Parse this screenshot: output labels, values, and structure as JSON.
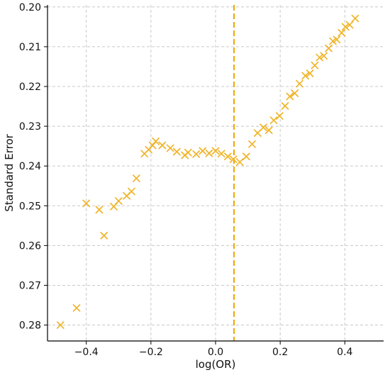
{
  "chart_data": {
    "type": "scatter",
    "xlabel": "log(OR)",
    "ylabel": "Standard Error",
    "xlim": [
      -0.52,
      0.52
    ],
    "ylim": [
      0.284,
      0.1995
    ],
    "y_inverted": true,
    "xticks": [
      -0.4,
      -0.2,
      0.0,
      0.2,
      0.4
    ],
    "xtick_labels": [
      "−0.4",
      "−0.2",
      "0.0",
      "0.2",
      "0.4"
    ],
    "yticks": [
      0.2,
      0.21,
      0.22,
      0.23,
      0.24,
      0.25,
      0.26,
      0.27,
      0.28
    ],
    "ytick_labels": [
      "0.20",
      "0.21",
      "0.22",
      "0.23",
      "0.24",
      "0.25",
      "0.26",
      "0.27",
      "0.28"
    ],
    "grid": true,
    "marker": "x",
    "color": "#f0b429",
    "reference_line": {
      "orientation": "vertical",
      "x": 0.057,
      "style": "dashed",
      "color": "#f0a500"
    },
    "points": [
      {
        "x": -0.48,
        "y": 0.28
      },
      {
        "x": -0.43,
        "y": 0.2757
      },
      {
        "x": -0.4,
        "y": 0.2494
      },
      {
        "x": -0.36,
        "y": 0.251
      },
      {
        "x": -0.345,
        "y": 0.2575
      },
      {
        "x": -0.315,
        "y": 0.2502
      },
      {
        "x": -0.3,
        "y": 0.2488
      },
      {
        "x": -0.275,
        "y": 0.2475
      },
      {
        "x": -0.26,
        "y": 0.2464
      },
      {
        "x": -0.245,
        "y": 0.2431
      },
      {
        "x": -0.22,
        "y": 0.2369
      },
      {
        "x": -0.207,
        "y": 0.2359
      },
      {
        "x": -0.195,
        "y": 0.2348
      },
      {
        "x": -0.185,
        "y": 0.2338
      },
      {
        "x": -0.165,
        "y": 0.2348
      },
      {
        "x": -0.14,
        "y": 0.2355
      },
      {
        "x": -0.12,
        "y": 0.2364
      },
      {
        "x": -0.095,
        "y": 0.2373
      },
      {
        "x": -0.085,
        "y": 0.2366
      },
      {
        "x": -0.06,
        "y": 0.237
      },
      {
        "x": -0.04,
        "y": 0.2362
      },
      {
        "x": -0.02,
        "y": 0.2368
      },
      {
        "x": 0.0,
        "y": 0.2362
      },
      {
        "x": 0.018,
        "y": 0.2369
      },
      {
        "x": 0.038,
        "y": 0.2376
      },
      {
        "x": 0.055,
        "y": 0.2383
      },
      {
        "x": 0.075,
        "y": 0.239
      },
      {
        "x": 0.095,
        "y": 0.2376
      },
      {
        "x": 0.113,
        "y": 0.2345
      },
      {
        "x": 0.13,
        "y": 0.2317
      },
      {
        "x": 0.148,
        "y": 0.2303
      },
      {
        "x": 0.165,
        "y": 0.231
      },
      {
        "x": 0.18,
        "y": 0.2285
      },
      {
        "x": 0.198,
        "y": 0.2274
      },
      {
        "x": 0.215,
        "y": 0.2249
      },
      {
        "x": 0.23,
        "y": 0.2225
      },
      {
        "x": 0.245,
        "y": 0.2217
      },
      {
        "x": 0.26,
        "y": 0.2193
      },
      {
        "x": 0.278,
        "y": 0.2173
      },
      {
        "x": 0.292,
        "y": 0.2167
      },
      {
        "x": 0.307,
        "y": 0.2147
      },
      {
        "x": 0.322,
        "y": 0.2127
      },
      {
        "x": 0.335,
        "y": 0.2123
      },
      {
        "x": 0.35,
        "y": 0.2104
      },
      {
        "x": 0.363,
        "y": 0.2086
      },
      {
        "x": 0.375,
        "y": 0.2082
      },
      {
        "x": 0.39,
        "y": 0.2065
      },
      {
        "x": 0.402,
        "y": 0.205
      },
      {
        "x": 0.415,
        "y": 0.2045
      },
      {
        "x": 0.432,
        "y": 0.2029
      }
    ]
  }
}
